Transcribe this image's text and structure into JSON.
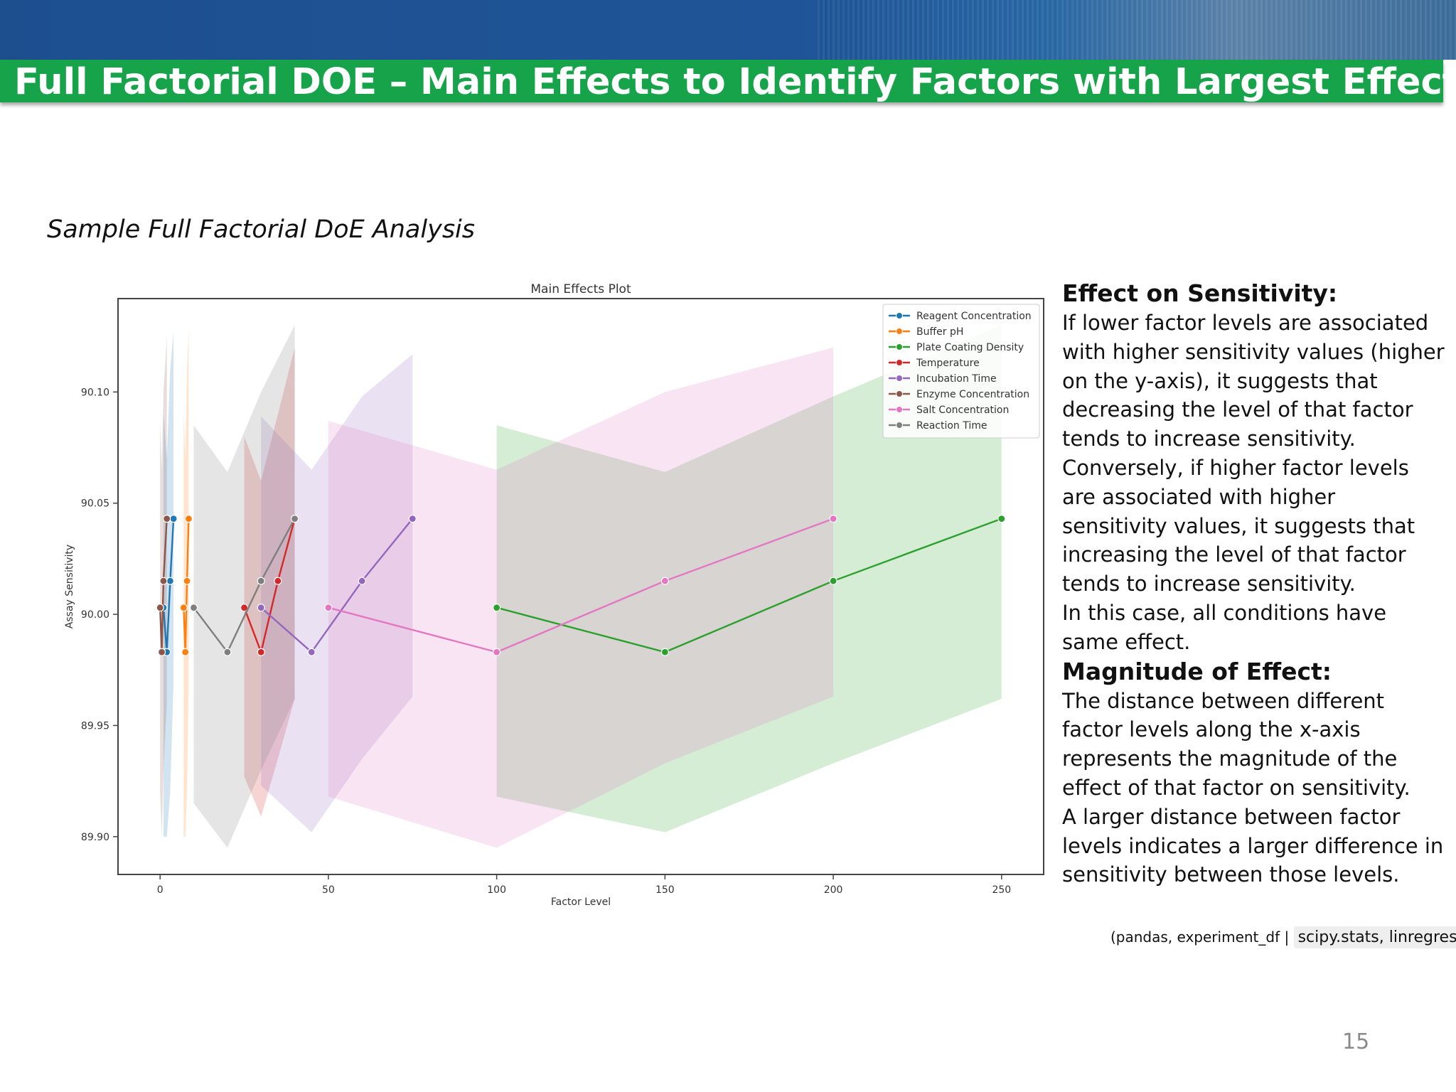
{
  "slide": {
    "title": "Full Factorial DOE – Main Effects to Identify Factors with Largest Effect",
    "subtitle": "Sample Full Factorial DoE Analysis",
    "page_number": "15",
    "source_text": "(pandas, experiment_df |",
    "source_code": "scipy.stats, linregress)"
  },
  "right_panel": {
    "heading1": "Effect on Sensitivity:",
    "para1": "If lower factor levels are associated with higher sensitivity values (higher on the y-axis), it suggests that decreasing the level of that factor tends to increase sensitivity.",
    "para2": "Conversely, if higher factor levels are associated with higher sensitivity values, it suggests that increasing the level of that factor tends to increase sensitivity.",
    "para3": "In this case, all conditions have same effect.",
    "heading2": "Magnitude of Effect:",
    "para4": "The distance between different factor levels along the x-axis represents the magnitude of the effect of that factor on sensitivity.",
    "para5": "A larger distance between factor levels indicates a larger difference in sensitivity between those levels."
  },
  "chart_data": {
    "type": "line",
    "title": "Main Effects Plot",
    "xlabel": "Factor Level",
    "ylabel": "Assay Sensitivity",
    "xlim": [
      -12.5,
      262.5
    ],
    "ylim": [
      89.883,
      90.142
    ],
    "xticks": [
      0,
      50,
      100,
      150,
      200,
      250
    ],
    "yticks": [
      89.9,
      89.95,
      90.0,
      90.05,
      90.1
    ],
    "ytick_labels": [
      "89.90",
      "89.95",
      "90.00",
      "90.05",
      "90.10"
    ],
    "grid": false,
    "legend_position": "upper right",
    "series": [
      {
        "name": "Reagent Concentration",
        "color": "#1f77b4",
        "x": [
          1,
          2,
          3,
          4
        ],
        "y": [
          90.003,
          89.983,
          90.015,
          90.043
        ],
        "ci_low": [
          89.9,
          89.9,
          89.92,
          89.97
        ],
        "ci_high": [
          90.09,
          90.07,
          90.11,
          90.127
        ]
      },
      {
        "name": "Buffer pH",
        "color": "#ff7f0e",
        "x": [
          7,
          7.5,
          8,
          8.5
        ],
        "y": [
          90.003,
          89.983,
          90.015,
          90.043
        ],
        "ci_low": [
          89.9,
          89.9,
          89.92,
          89.97
        ],
        "ci_high": [
          90.09,
          90.07,
          90.11,
          90.129
        ]
      },
      {
        "name": "Plate Coating Density",
        "color": "#2ca02c",
        "x": [
          100,
          150,
          200,
          250
        ],
        "y": [
          90.003,
          89.983,
          90.015,
          90.043
        ],
        "ci_low": [
          89.918,
          89.902,
          89.933,
          89.962
        ],
        "ci_high": [
          90.085,
          90.064,
          90.098,
          90.13
        ]
      },
      {
        "name": "Temperature",
        "color": "#d62728",
        "x": [
          25,
          30,
          35,
          40
        ],
        "y": [
          90.003,
          89.983,
          90.015,
          90.043
        ],
        "ci_low": [
          89.927,
          89.909,
          89.935,
          89.962
        ],
        "ci_high": [
          90.08,
          90.06,
          90.09,
          90.12
        ]
      },
      {
        "name": "Incubation Time",
        "color": "#9467bd",
        "x": [
          30,
          45,
          60,
          75
        ],
        "y": [
          90.003,
          89.983,
          90.015,
          90.043
        ],
        "ci_low": [
          89.923,
          89.902,
          89.935,
          89.963
        ],
        "ci_high": [
          90.089,
          90.065,
          90.098,
          90.117
        ]
      },
      {
        "name": "Enzyme Concentration",
        "color": "#8c564b",
        "x": [
          0,
          0.5,
          1,
          2
        ],
        "y": [
          90.003,
          89.983,
          90.015,
          90.043
        ],
        "ci_low": [
          89.92,
          89.9,
          89.93,
          89.96
        ],
        "ci_high": [
          90.087,
          90.065,
          90.1,
          90.125
        ]
      },
      {
        "name": "Salt Concentration",
        "color": "#e377c2",
        "x": [
          50,
          100,
          150,
          200
        ],
        "y": [
          90.003,
          89.983,
          90.015,
          90.043
        ],
        "ci_low": [
          89.918,
          89.895,
          89.933,
          89.963
        ],
        "ci_high": [
          90.087,
          90.065,
          90.1,
          90.12
        ]
      },
      {
        "name": "Reaction Time",
        "color": "#7f7f7f",
        "x": [
          10,
          20,
          30,
          40
        ],
        "y": [
          90.003,
          89.983,
          90.015,
          90.043
        ],
        "ci_low": [
          89.915,
          89.895,
          89.93,
          89.962
        ],
        "ci_high": [
          90.085,
          90.064,
          90.1,
          90.13
        ]
      }
    ]
  }
}
